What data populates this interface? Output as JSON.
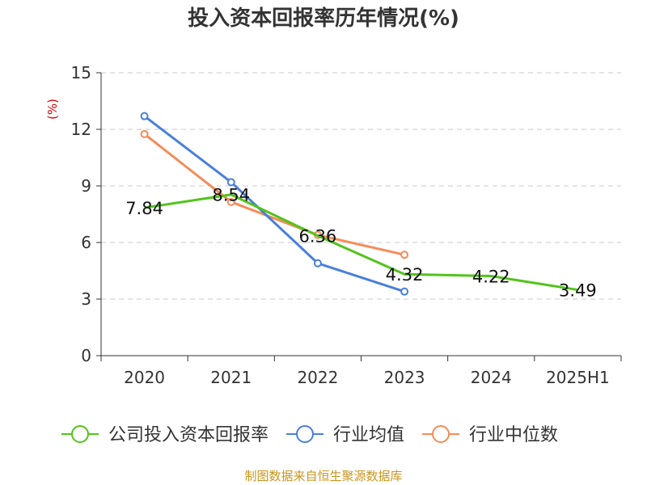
{
  "chart_data": {
    "type": "line",
    "title": "投入资本回报率历年情况(%)",
    "ylabel": "(%)",
    "categories": [
      "2020",
      "2021",
      "2022",
      "2023",
      "2024",
      "2025H1"
    ],
    "ylim": [
      0,
      15
    ],
    "yticks": [
      0,
      3,
      6,
      9,
      12,
      15
    ],
    "grid": true,
    "legend_position": "bottom",
    "series": [
      {
        "name": "公司投入资本回报率",
        "color": "#52c41a",
        "values": [
          7.84,
          8.54,
          6.36,
          4.32,
          4.22,
          3.49
        ],
        "labels": [
          "7.84",
          "8.54",
          "6.36",
          "4.32",
          "4.22",
          "3.49"
        ]
      },
      {
        "name": "行业均值",
        "color": "#4a7fdc",
        "values": [
          12.7,
          9.2,
          4.9,
          3.4,
          null,
          null
        ]
      },
      {
        "name": "行业中位数",
        "color": "#f58b58",
        "values": [
          11.75,
          8.15,
          6.4,
          5.35,
          null,
          null
        ]
      }
    ]
  },
  "source": "制图数据来自恒生聚源数据库"
}
